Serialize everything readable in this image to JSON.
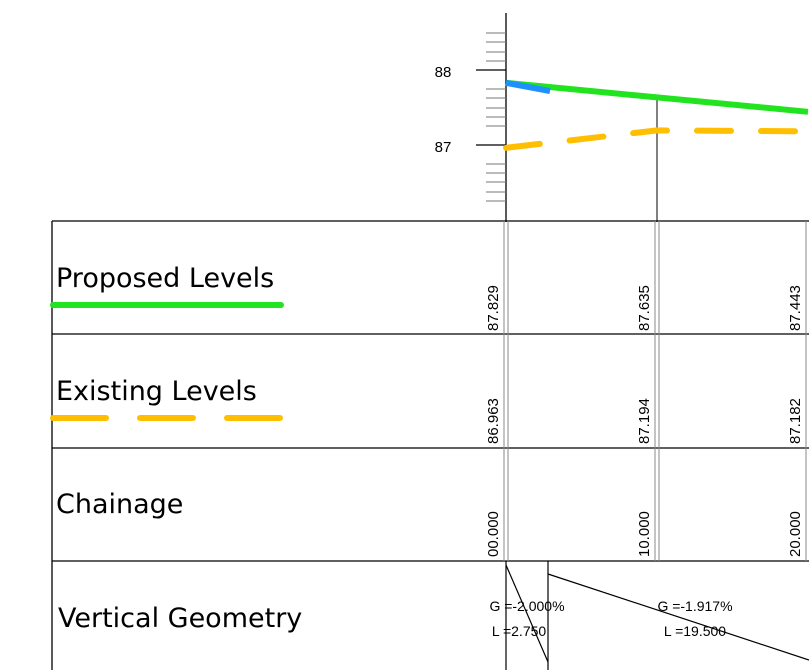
{
  "axis": {
    "labels": [
      {
        "value": "88",
        "level": 88
      },
      {
        "value": "87",
        "level": 87
      }
    ]
  },
  "rows": {
    "proposed": {
      "label": "Proposed Levels",
      "values": [
        "87.829",
        "87.635",
        "87.443"
      ]
    },
    "existing": {
      "label": "Existing Levels",
      "values": [
        "86.963",
        "87.194",
        "87.182"
      ]
    },
    "chainage": {
      "label": "Chainage",
      "values": [
        "00.000",
        "10.000",
        "20.000"
      ]
    },
    "vertical": {
      "label": "Vertical Geometry"
    }
  },
  "geometry": [
    {
      "grade": "G =-2.000%",
      "length": "L =2.750"
    },
    {
      "grade": "G =-1.917%",
      "length": "L =19.500"
    }
  ],
  "colors": {
    "proposed": "#22e31f",
    "proposed_start": "#1e90ff",
    "existing": "#ffbf00",
    "grid": "#000000",
    "grid_light": "#999999"
  },
  "chart_data": {
    "type": "line",
    "series": [
      {
        "name": "Proposed Levels",
        "x": [
          0,
          10,
          20
        ],
        "y": [
          87.829,
          87.635,
          87.443
        ]
      },
      {
        "name": "Existing Levels",
        "x": [
          0,
          10,
          20
        ],
        "y": [
          86.963,
          87.194,
          87.182
        ]
      }
    ],
    "ylim": [
      86.1,
      88.8
    ]
  }
}
